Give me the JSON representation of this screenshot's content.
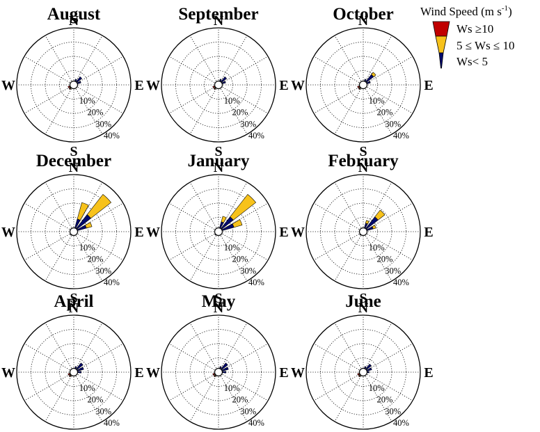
{
  "chart_data": {
    "type": "wind-rose",
    "legend": {
      "title": "Wind Speed (m s",
      "title_sup": "-1",
      "title_end": ")",
      "items": [
        {
          "label": "Ws ≥10",
          "color": "#c00000"
        },
        {
          "label": "5 ≤ Ws ≤ 10",
          "color": "#f7c21b"
        },
        {
          "label": "Ws< 5",
          "color": "#000a6e"
        }
      ]
    },
    "direction_labels": {
      "n": "N",
      "e": "E",
      "s": "S",
      "w": "W"
    },
    "ring_labels": [
      "10%",
      "20%",
      "30%",
      "40%"
    ],
    "rlim": [
      0,
      40
    ],
    "panels": [
      {
        "title": "August",
        "petals": [
          {
            "dir": 45,
            "blue": 6,
            "yellow": 0,
            "red": 0
          },
          {
            "dir": 67.5,
            "blue": 4,
            "yellow": 0,
            "red": 0
          },
          {
            "dir": 22.5,
            "blue": 3,
            "yellow": 0,
            "red": 0
          },
          {
            "dir": 225,
            "blue": 2,
            "yellow": 0.5,
            "red": 0.5
          },
          {
            "dir": 247.5,
            "blue": 1,
            "yellow": 1,
            "red": 1
          }
        ]
      },
      {
        "title": "September",
        "petals": [
          {
            "dir": 45,
            "blue": 6,
            "yellow": 0,
            "red": 0
          },
          {
            "dir": 67.5,
            "blue": 4,
            "yellow": 0,
            "red": 0
          },
          {
            "dir": 22.5,
            "blue": 3,
            "yellow": 0,
            "red": 0
          },
          {
            "dir": 225,
            "blue": 2,
            "yellow": 0.5,
            "red": 0.5
          },
          {
            "dir": 247.5,
            "blue": 1,
            "yellow": 1,
            "red": 1
          }
        ]
      },
      {
        "title": "October",
        "petals": [
          {
            "dir": 45,
            "blue": 8,
            "yellow": 2,
            "red": 0
          },
          {
            "dir": 67.5,
            "blue": 4,
            "yellow": 0,
            "red": 0
          },
          {
            "dir": 22.5,
            "blue": 3,
            "yellow": 0,
            "red": 0
          },
          {
            "dir": 225,
            "blue": 2,
            "yellow": 0.5,
            "red": 0.5
          },
          {
            "dir": 247.5,
            "blue": 1,
            "yellow": 1,
            "red": 1
          }
        ]
      },
      {
        "title": "December",
        "petals": [
          {
            "dir": 45,
            "blue": 14,
            "yellow": 18,
            "red": 0
          },
          {
            "dir": 22.5,
            "blue": 8,
            "yellow": 12,
            "red": 0
          },
          {
            "dir": 67.5,
            "blue": 8,
            "yellow": 4,
            "red": 0
          },
          {
            "dir": 225,
            "blue": 2,
            "yellow": 0,
            "red": 0
          }
        ]
      },
      {
        "title": "January",
        "petals": [
          {
            "dir": 45,
            "blue": 12,
            "yellow": 20,
            "red": 0
          },
          {
            "dir": 67.5,
            "blue": 10,
            "yellow": 6,
            "red": 0
          },
          {
            "dir": 22.5,
            "blue": 6,
            "yellow": 4,
            "red": 0
          },
          {
            "dir": 225,
            "blue": 2,
            "yellow": 0,
            "red": 0
          }
        ]
      },
      {
        "title": "February",
        "petals": [
          {
            "dir": 45,
            "blue": 12,
            "yellow": 6,
            "red": 0
          },
          {
            "dir": 67.5,
            "blue": 6,
            "yellow": 2,
            "red": 0
          },
          {
            "dir": 22.5,
            "blue": 5,
            "yellow": 2,
            "red": 0
          },
          {
            "dir": 225,
            "blue": 2,
            "yellow": 0,
            "red": 0
          }
        ]
      },
      {
        "title": "April",
        "petals": [
          {
            "dir": 45,
            "blue": 7,
            "yellow": 0,
            "red": 0
          },
          {
            "dir": 67.5,
            "blue": 6,
            "yellow": 0,
            "red": 0
          },
          {
            "dir": 90,
            "blue": 4,
            "yellow": 0,
            "red": 0
          },
          {
            "dir": 22.5,
            "blue": 3,
            "yellow": 0,
            "red": 0
          },
          {
            "dir": 225,
            "blue": 2,
            "yellow": 0.5,
            "red": 0.5
          },
          {
            "dir": 247.5,
            "blue": 1,
            "yellow": 1,
            "red": 1
          }
        ]
      },
      {
        "title": "May",
        "petals": [
          {
            "dir": 45,
            "blue": 7,
            "yellow": 0,
            "red": 0
          },
          {
            "dir": 67.5,
            "blue": 6,
            "yellow": 0,
            "red": 0
          },
          {
            "dir": 90,
            "blue": 4,
            "yellow": 0,
            "red": 0
          },
          {
            "dir": 22.5,
            "blue": 3,
            "yellow": 0,
            "red": 0
          },
          {
            "dir": 225,
            "blue": 2,
            "yellow": 0.5,
            "red": 0.5
          },
          {
            "dir": 247.5,
            "blue": 1,
            "yellow": 1,
            "red": 1
          }
        ]
      },
      {
        "title": "June",
        "petals": [
          {
            "dir": 45,
            "blue": 6,
            "yellow": 0,
            "red": 0
          },
          {
            "dir": 67.5,
            "blue": 5,
            "yellow": 0,
            "red": 0
          },
          {
            "dir": 90,
            "blue": 3,
            "yellow": 0,
            "red": 0
          },
          {
            "dir": 22.5,
            "blue": 3,
            "yellow": 0,
            "red": 0
          },
          {
            "dir": 225,
            "blue": 2,
            "yellow": 0.5,
            "red": 0.5
          },
          {
            "dir": 247.5,
            "blue": 1,
            "yellow": 1,
            "red": 1
          }
        ]
      }
    ]
  }
}
